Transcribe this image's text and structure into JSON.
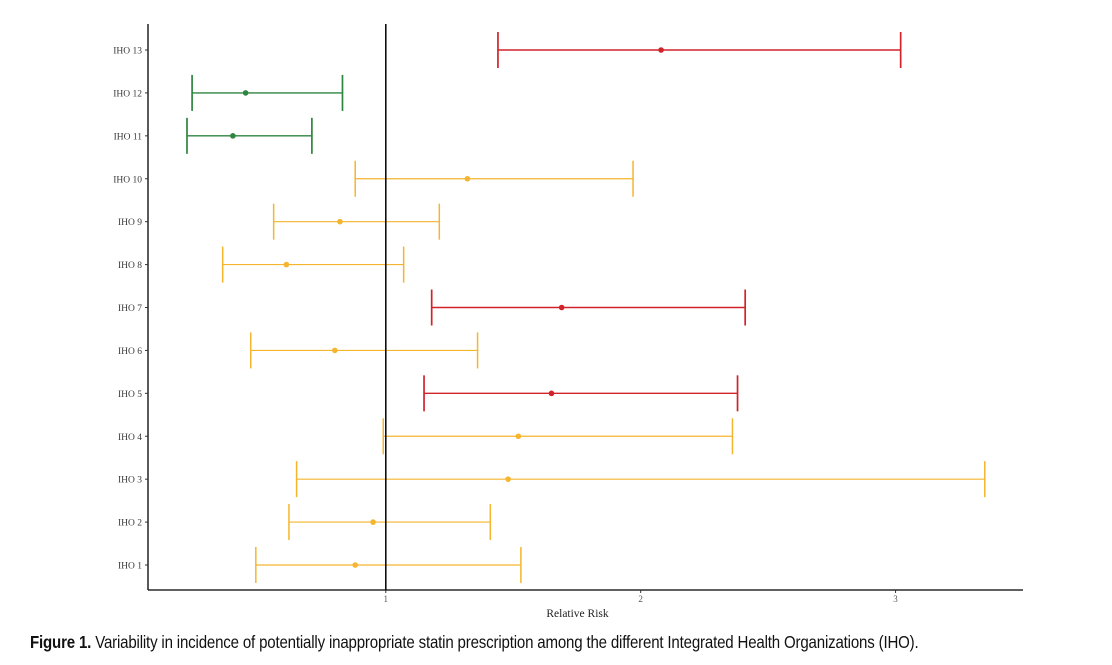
{
  "chart_data": {
    "type": "forest",
    "title": "",
    "xlabel": "Relative Risk",
    "ylabel": "",
    "xlim": [
      0.067,
      3.5
    ],
    "x_ticks": [
      1,
      2,
      3
    ],
    "x_tick_labels": [
      "1",
      "2",
      "3"
    ],
    "reference_line": 1,
    "grid": false,
    "legend": null,
    "colors": {
      "significant_high": "#d1232a",
      "significant_low": "#2e8540",
      "non_significant": "#f5b52e"
    },
    "categories": [
      "IHO 1",
      "IHO 2",
      "IHO 3",
      "IHO 4",
      "IHO 5",
      "IHO 6",
      "IHO 7",
      "IHO 8",
      "IHO 9",
      "IHO 10",
      "IHO 11",
      "IHO 12",
      "IHO 13"
    ],
    "series": [
      {
        "name": "IHO 1",
        "estimate": 0.88,
        "lower": 0.49,
        "upper": 1.53,
        "group": "non_significant"
      },
      {
        "name": "IHO 2",
        "estimate": 0.95,
        "lower": 0.62,
        "upper": 1.41,
        "group": "non_significant"
      },
      {
        "name": "IHO 3",
        "estimate": 1.48,
        "lower": 0.65,
        "upper": 3.35,
        "group": "non_significant"
      },
      {
        "name": "IHO 4",
        "estimate": 1.52,
        "lower": 0.99,
        "upper": 2.36,
        "group": "non_significant"
      },
      {
        "name": "IHO 5",
        "estimate": 1.65,
        "lower": 1.15,
        "upper": 2.38,
        "group": "significant_high"
      },
      {
        "name": "IHO 6",
        "estimate": 0.8,
        "lower": 0.47,
        "upper": 1.36,
        "group": "non_significant"
      },
      {
        "name": "IHO 7",
        "estimate": 1.69,
        "lower": 1.18,
        "upper": 2.41,
        "group": "significant_high"
      },
      {
        "name": "IHO 8",
        "estimate": 0.61,
        "lower": 0.36,
        "upper": 1.07,
        "group": "non_significant"
      },
      {
        "name": "IHO 9",
        "estimate": 0.82,
        "lower": 0.56,
        "upper": 1.21,
        "group": "non_significant"
      },
      {
        "name": "IHO 10",
        "estimate": 1.32,
        "lower": 0.88,
        "upper": 1.97,
        "group": "non_significant"
      },
      {
        "name": "IHO 11",
        "estimate": 0.4,
        "lower": 0.22,
        "upper": 0.71,
        "group": "significant_low"
      },
      {
        "name": "IHO 12",
        "estimate": 0.45,
        "lower": 0.24,
        "upper": 0.83,
        "group": "significant_low"
      },
      {
        "name": "IHO 13",
        "estimate": 2.08,
        "lower": 1.44,
        "upper": 3.02,
        "group": "significant_high"
      }
    ]
  },
  "caption": {
    "label": "Figure 1.",
    "text": " Variability in incidence of potentially inappropriate statin prescription among the different Integrated Health Organizations (IHO)."
  }
}
